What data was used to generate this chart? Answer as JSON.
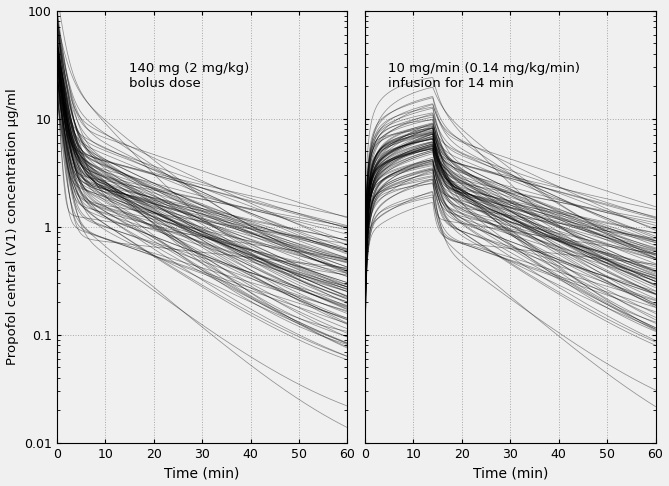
{
  "ylim": [
    0.01,
    100
  ],
  "xlim": [
    0,
    60
  ],
  "yticks": [
    0.01,
    0.1,
    1,
    10,
    100
  ],
  "xticks": [
    0,
    10,
    20,
    30,
    40,
    50,
    60
  ],
  "ylabel": "Propofol central (V1) concentration μg/ml",
  "xlabel": "Time (min)",
  "left_annotation": "140 mg (2 mg/kg)\nbolus dose",
  "right_annotation": "10 mg/min (0.14 mg/kg/min)\ninfusion for 14 min",
  "n_subjects": 100,
  "bolus_dose": 140,
  "infusion_rate": 10,
  "infusion_duration": 14,
  "t_end": 60,
  "background_color": "#f0f0f0",
  "line_color": "#000000",
  "line_alpha": 0.4,
  "line_width": 0.55,
  "grid_color": "#888888",
  "grid_style": "dotted"
}
